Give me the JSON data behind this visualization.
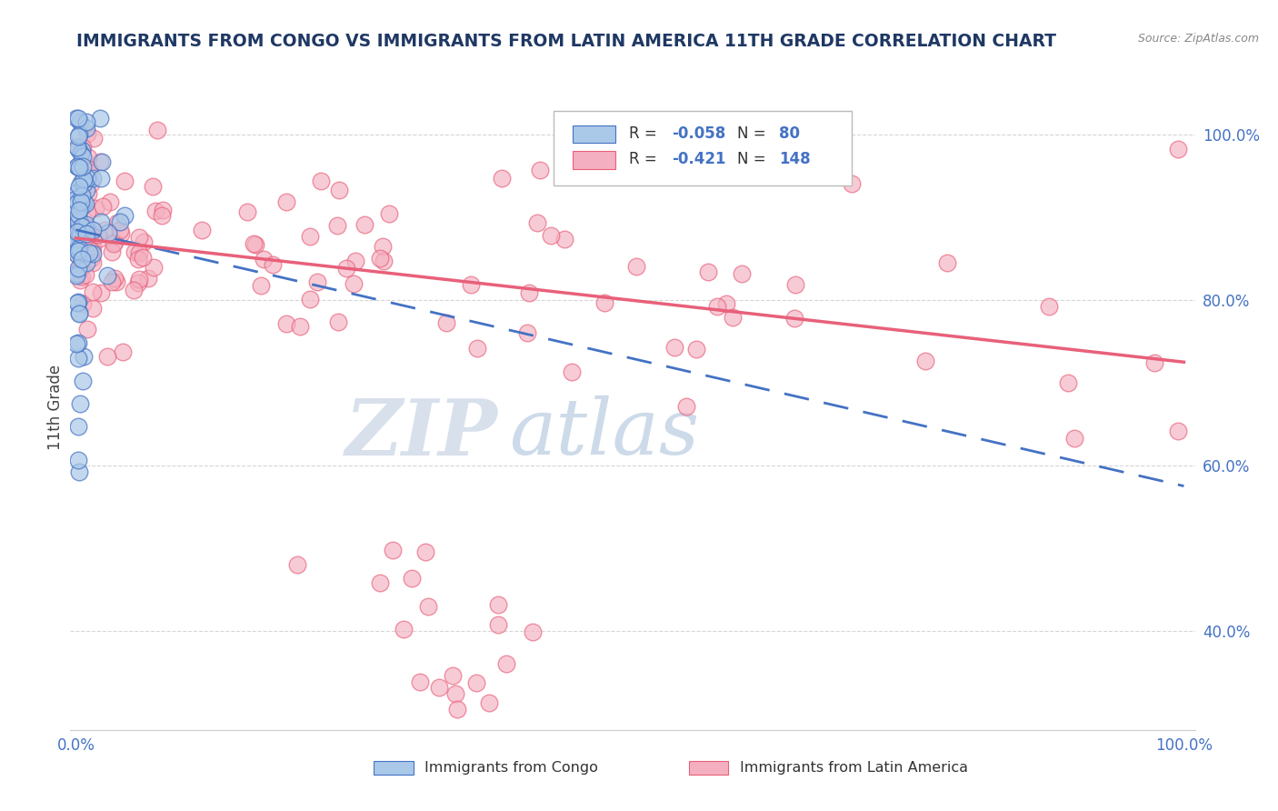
{
  "title": "IMMIGRANTS FROM CONGO VS IMMIGRANTS FROM LATIN AMERICA 11TH GRADE CORRELATION CHART",
  "source": "Source: ZipAtlas.com",
  "ylabel": "11th Grade",
  "congo_R": -0.058,
  "congo_N": 80,
  "latin_R": -0.421,
  "latin_N": 148,
  "congo_color": "#aac8e8",
  "latin_color": "#f4b0c0",
  "congo_trend_color": "#4472c4",
  "latin_trend_color": "#e8607a",
  "watermark_zip": "ZIP",
  "watermark_atlas": "atlas",
  "background_color": "#ffffff",
  "grid_color": "#cccccc",
  "title_color": "#1f3864",
  "source_color": "#888888",
  "tick_label_color": "#4472c4",
  "legend_text_color": "#4472c4",
  "ylim_min": 0.28,
  "ylim_max": 1.06,
  "xlim_min": -0.005,
  "xlim_max": 1.01,
  "congo_trend_y0": 0.885,
  "congo_trend_y1": 0.575,
  "latin_trend_y0": 0.875,
  "latin_trend_y1": 0.725
}
